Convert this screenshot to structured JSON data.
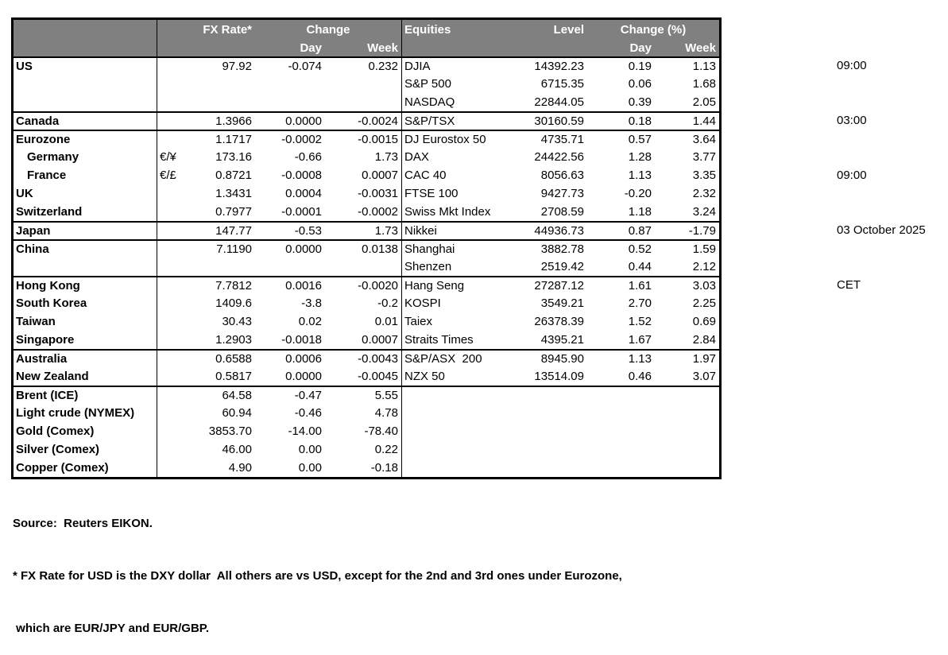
{
  "colors": {
    "header_bg": "#808080",
    "header_text": "#ffffff",
    "border": "#000000",
    "text": "#000000",
    "background": "#ffffff"
  },
  "table": {
    "header": {
      "fx_rate": "FX Rate*",
      "fx_change": "Change",
      "equities": "Equities",
      "level": "Level",
      "eq_change": "Change (%)",
      "day": "Day",
      "week": "Week"
    },
    "rows": [
      {
        "label": "US",
        "sym": "",
        "fx": "97.92",
        "fxd": "-0.074",
        "fxw": "0.232",
        "eq": "DJIA",
        "lvl": "14392.23",
        "eqd": "0.19",
        "eqw": "1.13",
        "indent": false,
        "sep": false
      },
      {
        "label": "",
        "sym": "",
        "fx": "",
        "fxd": "",
        "fxw": "",
        "eq": "S&P 500",
        "lvl": "6715.35",
        "eqd": "0.06",
        "eqw": "1.68",
        "indent": false,
        "sep": false
      },
      {
        "label": "",
        "sym": "",
        "fx": "",
        "fxd": "",
        "fxw": "",
        "eq": "NASDAQ",
        "lvl": "22844.05",
        "eqd": "0.39",
        "eqw": "2.05",
        "indent": false,
        "sep": false
      },
      {
        "label": "Canada",
        "sym": "",
        "fx": "1.3966",
        "fxd": "0.0000",
        "fxw": "-0.0024",
        "eq": "S&P/TSX",
        "lvl": "30160.59",
        "eqd": "0.18",
        "eqw": "1.44",
        "indent": false,
        "sep": true
      },
      {
        "label": "Eurozone",
        "sym": "",
        "fx": "1.1717",
        "fxd": "-0.0002",
        "fxw": "-0.0015",
        "eq": "DJ Eurostox 50",
        "lvl": "4735.71",
        "eqd": "0.57",
        "eqw": "3.64",
        "indent": false,
        "sep": true
      },
      {
        "label": "Germany",
        "sym": "€/¥",
        "fx": "173.16",
        "fxd": "-0.66",
        "fxw": "1.73",
        "eq": "DAX",
        "lvl": "24422.56",
        "eqd": "1.28",
        "eqw": "3.77",
        "indent": true,
        "sep": false
      },
      {
        "label": "France",
        "sym": "€/£",
        "fx": "0.8721",
        "fxd": "-0.0008",
        "fxw": "0.0007",
        "eq": "CAC 40",
        "lvl": "8056.63",
        "eqd": "1.13",
        "eqw": "3.35",
        "indent": true,
        "sep": false
      },
      {
        "label": "UK",
        "sym": "",
        "fx": "1.3431",
        "fxd": "0.0004",
        "fxw": "-0.0031",
        "eq": "FTSE 100",
        "lvl": "9427.73",
        "eqd": "-0.20",
        "eqw": "2.32",
        "indent": false,
        "sep": false
      },
      {
        "label": "Switzerland",
        "sym": "",
        "fx": "0.7977",
        "fxd": "-0.0001",
        "fxw": "-0.0002",
        "eq": "Swiss Mkt Index",
        "lvl": "2708.59",
        "eqd": "1.18",
        "eqw": "3.24",
        "indent": false,
        "sep": false
      },
      {
        "label": "Japan",
        "sym": "",
        "fx": "147.77",
        "fxd": "-0.53",
        "fxw": "1.73",
        "eq": "Nikkei",
        "lvl": "44936.73",
        "eqd": "0.87",
        "eqw": "-1.79",
        "indent": false,
        "sep": true
      },
      {
        "label": "China",
        "sym": "",
        "fx": "7.1190",
        "fxd": "0.0000",
        "fxw": "0.0138",
        "eq": "Shanghai",
        "lvl": "3882.78",
        "eqd": "0.52",
        "eqw": "1.59",
        "indent": false,
        "sep": true
      },
      {
        "label": "",
        "sym": "",
        "fx": "",
        "fxd": "",
        "fxw": "",
        "eq": "Shenzen",
        "lvl": "2519.42",
        "eqd": "0.44",
        "eqw": "2.12",
        "indent": false,
        "sep": false
      },
      {
        "label": "Hong Kong",
        "sym": "",
        "fx": "7.7812",
        "fxd": "0.0016",
        "fxw": "-0.0020",
        "eq": "Hang Seng",
        "lvl": "27287.12",
        "eqd": "1.61",
        "eqw": "3.03",
        "indent": false,
        "sep": true
      },
      {
        "label": "South Korea",
        "sym": "",
        "fx": "1409.6",
        "fxd": "-3.8",
        "fxw": "-0.2",
        "eq": "KOSPI",
        "lvl": "3549.21",
        "eqd": "2.70",
        "eqw": "2.25",
        "indent": false,
        "sep": false
      },
      {
        "label": "Taiwan",
        "sym": "",
        "fx": "30.43",
        "fxd": "0.02",
        "fxw": "0.01",
        "eq": "Taiex",
        "lvl": "26378.39",
        "eqd": "1.52",
        "eqw": "0.69",
        "indent": false,
        "sep": false
      },
      {
        "label": "Singapore",
        "sym": "",
        "fx": "1.2903",
        "fxd": "-0.0018",
        "fxw": "0.0007",
        "eq": "Straits Times",
        "lvl": "4395.21",
        "eqd": "1.67",
        "eqw": "2.84",
        "indent": false,
        "sep": false
      },
      {
        "label": "Australia",
        "sym": "",
        "fx": "0.6588",
        "fxd": "0.0006",
        "fxw": "-0.0043",
        "eq": "S&P/ASX  200",
        "lvl": "8945.90",
        "eqd": "1.13",
        "eqw": "1.97",
        "indent": false,
        "sep": true
      },
      {
        "label": "New Zealand",
        "sym": "",
        "fx": "0.5817",
        "fxd": "0.0000",
        "fxw": "-0.0045",
        "eq": "NZX 50",
        "lvl": "13514.09",
        "eqd": "0.46",
        "eqw": "3.07",
        "indent": false,
        "sep": false
      },
      {
        "label": "Brent (ICE)",
        "sym": "",
        "fx": "64.58",
        "fxd": "-0.47",
        "fxw": "5.55",
        "eq": "",
        "lvl": "",
        "eqd": "",
        "eqw": "",
        "indent": false,
        "sep": true
      },
      {
        "label": "Light crude (NYMEX)",
        "sym": "",
        "fx": "60.94",
        "fxd": "-0.46",
        "fxw": "4.78",
        "eq": "",
        "lvl": "",
        "eqd": "",
        "eqw": "",
        "indent": false,
        "sep": false
      },
      {
        "label": "Gold (Comex)",
        "sym": "",
        "fx": "3853.70",
        "fxd": "-14.00",
        "fxw": "-78.40",
        "eq": "",
        "lvl": "",
        "eqd": "",
        "eqw": "",
        "indent": false,
        "sep": false
      },
      {
        "label": "Silver (Comex)",
        "sym": "",
        "fx": "46.00",
        "fxd": "0.00",
        "fxw": "0.22",
        "eq": "",
        "lvl": "",
        "eqd": "",
        "eqw": "",
        "indent": false,
        "sep": false
      },
      {
        "label": "Copper (Comex)",
        "sym": "",
        "fx": "4.90",
        "fxd": "0.00",
        "fxw": "-0.18",
        "eq": "",
        "lvl": "",
        "eqd": "",
        "eqw": "",
        "indent": false,
        "sep": false
      }
    ]
  },
  "timestamps": [
    "09:00",
    "03:00",
    "09:00",
    "03 October 2025",
    "CET"
  ],
  "footer": {
    "source": "Source:  Reuters EIKON.",
    "note1": "* FX Rate for USD is the DXY dollar  All others are vs USD, except for the 2nd and 3rd ones under Eurozone,",
    "note2": " which are EUR/JPY and EUR/GBP."
  }
}
